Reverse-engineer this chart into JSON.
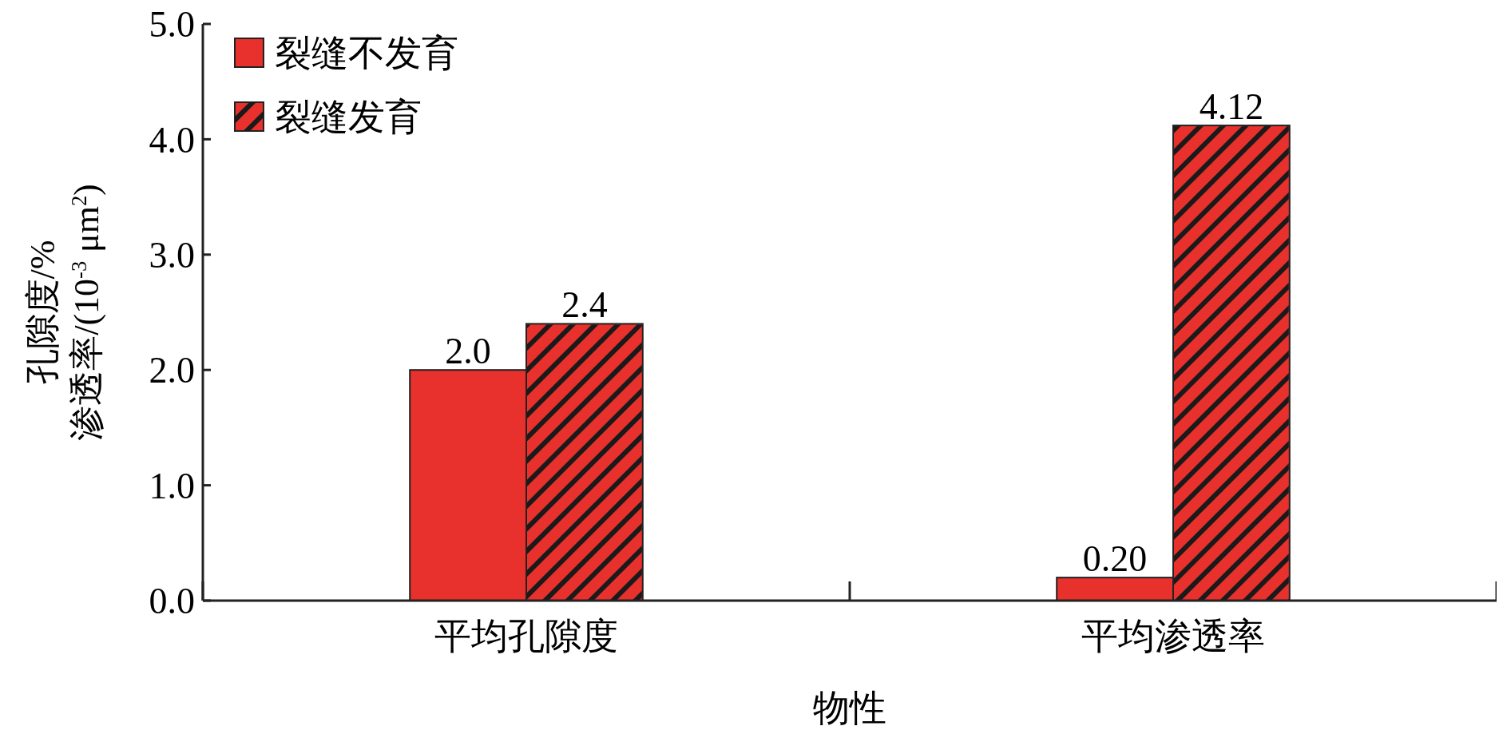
{
  "chart_data": {
    "type": "bar",
    "xlabel": "物性",
    "ylabel": "孔隙度/%\n渗透率/(10$^{-3}$ μm$^{2}$)",
    "categories": [
      "平均孔隙度",
      "平均渗透率"
    ],
    "series": [
      {
        "name": "裂缝不发育",
        "color": "#e8302c",
        "values": [
          2.0,
          0.2
        ],
        "value_labels": [
          "2.0",
          "0.20"
        ]
      },
      {
        "name": "裂缝发育",
        "color": "#e8302c",
        "values": [
          2.4,
          4.12
        ],
        "value_labels": [
          "2.4",
          "4.12"
        ]
      }
    ],
    "ylim": [
      0,
      5
    ],
    "yticks": [
      {
        "value": 0,
        "label": "0.0"
      },
      {
        "value": 1,
        "label": "1.0"
      },
      {
        "value": 2,
        "label": "2.0"
      },
      {
        "value": 3,
        "label": "3.0"
      },
      {
        "value": 4,
        "label": "4.0"
      },
      {
        "value": 5,
        "label": "5.0"
      }
    ],
    "legend": "top left",
    "grid": false
  }
}
